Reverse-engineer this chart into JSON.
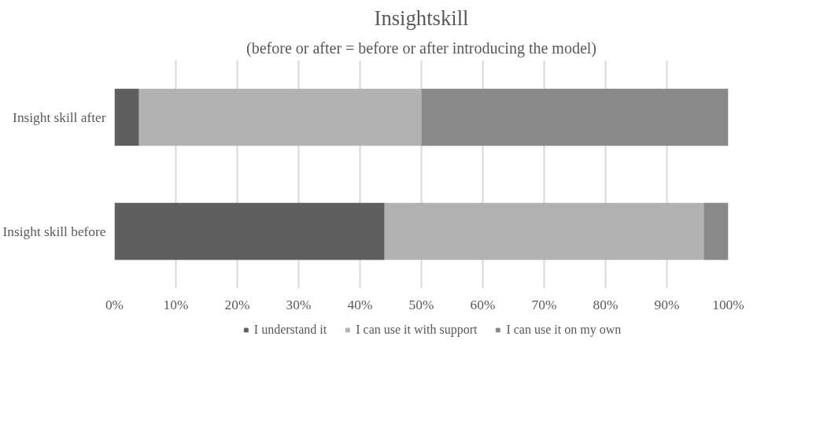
{
  "chart_data": {
    "type": "bar",
    "orientation": "horizontal",
    "stacked": true,
    "title": "Insightskill",
    "subtitle": "(before or after = before or after introducing the model)",
    "categories": [
      "Insight skill after",
      "Insight skill before"
    ],
    "series": [
      {
        "name": "I understand it",
        "color": "#5f5f5f",
        "values": [
          4,
          44
        ]
      },
      {
        "name": "I can use it with support",
        "color": "#b2b2b2",
        "values": [
          46,
          52
        ]
      },
      {
        "name": "I can use it on my own",
        "color": "#898989",
        "values": [
          50,
          4
        ]
      }
    ],
    "xlim": [
      0,
      100
    ],
    "xticks": [
      {
        "value": 0,
        "label": "0%"
      },
      {
        "value": 10,
        "label": "10%"
      },
      {
        "value": 20,
        "label": "20%"
      },
      {
        "value": 30,
        "label": "30%"
      },
      {
        "value": 40,
        "label": "40%"
      },
      {
        "value": 50,
        "label": "50%"
      },
      {
        "value": 60,
        "label": "60%"
      },
      {
        "value": 70,
        "label": "70%"
      },
      {
        "value": 80,
        "label": "80%"
      },
      {
        "value": 90,
        "label": "90%"
      },
      {
        "value": 100,
        "label": "100%"
      }
    ],
    "grid": "x",
    "legend": "bottom"
  }
}
